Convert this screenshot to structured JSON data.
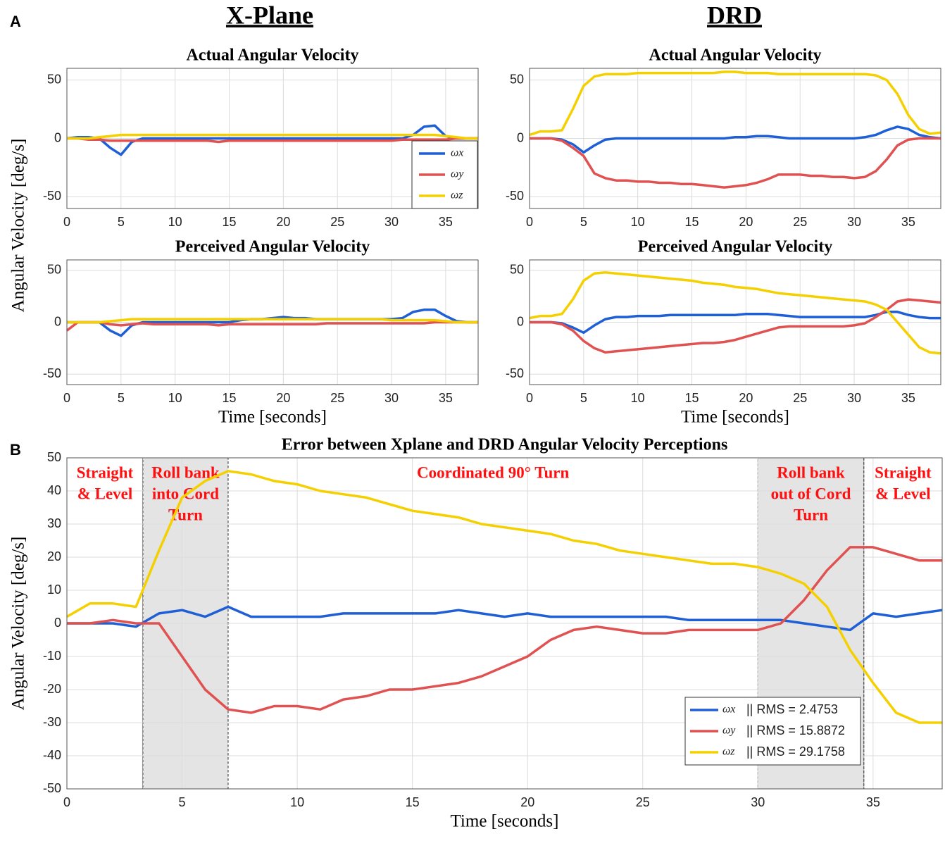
{
  "figure": {
    "panel_a_label": "A",
    "panel_b_label": "B",
    "column_titles": [
      "X-Plane",
      "DRD"
    ],
    "a_ylabel": "Angular Velocity [deg/s]"
  },
  "chart_data": [
    {
      "type": "line",
      "title": "Actual Angular Velocity",
      "legend": true,
      "x": [
        0,
        1,
        2,
        3,
        4,
        5,
        6,
        7,
        8,
        9,
        10,
        11,
        12,
        13,
        14,
        15,
        16,
        17,
        18,
        19,
        20,
        21,
        22,
        23,
        24,
        25,
        26,
        27,
        28,
        29,
        30,
        31,
        32,
        33,
        34,
        35,
        36,
        37,
        38
      ],
      "xlim": [
        0,
        38
      ],
      "ylim": [
        -60,
        60
      ],
      "xticks": [
        0,
        5,
        10,
        15,
        20,
        25,
        30,
        35
      ],
      "yticks": [
        -50,
        0,
        50
      ],
      "grid": true,
      "series": [
        {
          "name": "ωx",
          "color": "#1f5fd6",
          "values": [
            0,
            1,
            1,
            0,
            -8,
            -14,
            -3,
            0,
            0,
            0,
            0,
            0,
            0,
            0,
            0,
            0,
            0,
            0,
            0,
            0,
            0,
            0,
            0,
            0,
            0,
            0,
            0,
            0,
            0,
            0,
            0,
            0,
            3,
            10,
            11,
            2,
            0,
            0,
            0
          ]
        },
        {
          "name": "ωy",
          "color": "#e05252",
          "values": [
            0,
            0,
            -1,
            -1,
            -2,
            -2,
            -2,
            -2,
            -2,
            -2,
            -2,
            -2,
            -2,
            -2,
            -3,
            -2,
            -2,
            -2,
            -2,
            -2,
            -2,
            -2,
            -2,
            -2,
            -2,
            -2,
            -2,
            -2,
            -2,
            -2,
            -2,
            -1,
            -1,
            -1,
            -1,
            -1,
            0,
            0,
            0
          ]
        },
        {
          "name": "ωz",
          "color": "#f5d000",
          "values": [
            0,
            0,
            0,
            1,
            2,
            3,
            3,
            3,
            3,
            3,
            3,
            3,
            3,
            3,
            3,
            3,
            3,
            3,
            3,
            3,
            3,
            3,
            3,
            3,
            3,
            3,
            3,
            3,
            3,
            3,
            3,
            3,
            3,
            3,
            3,
            2,
            1,
            0,
            0
          ]
        }
      ]
    },
    {
      "type": "line",
      "title": "Actual Angular Velocity",
      "x": [
        0,
        1,
        2,
        3,
        4,
        5,
        6,
        7,
        8,
        9,
        10,
        11,
        12,
        13,
        14,
        15,
        16,
        17,
        18,
        19,
        20,
        21,
        22,
        23,
        24,
        25,
        26,
        27,
        28,
        29,
        30,
        31,
        32,
        33,
        34,
        35,
        36,
        37,
        38
      ],
      "xlim": [
        0,
        38
      ],
      "ylim": [
        -60,
        60
      ],
      "xticks": [
        0,
        5,
        10,
        15,
        20,
        25,
        30,
        35
      ],
      "yticks": [
        -50,
        0,
        50
      ],
      "grid": true,
      "series": [
        {
          "name": "ωx",
          "color": "#1f5fd6",
          "values": [
            0,
            0,
            0,
            -1,
            -5,
            -12,
            -6,
            -1,
            0,
            0,
            0,
            0,
            0,
            0,
            0,
            0,
            0,
            0,
            0,
            1,
            1,
            2,
            2,
            1,
            0,
            0,
            0,
            0,
            0,
            0,
            0,
            1,
            3,
            7,
            10,
            8,
            3,
            1,
            0
          ]
        },
        {
          "name": "ωy",
          "color": "#e05252",
          "values": [
            0,
            0,
            0,
            -2,
            -8,
            -15,
            -30,
            -34,
            -36,
            -36,
            -37,
            -37,
            -38,
            -38,
            -39,
            -39,
            -40,
            -41,
            -42,
            -41,
            -40,
            -38,
            -35,
            -31,
            -31,
            -31,
            -32,
            -32,
            -33,
            -33,
            -34,
            -33,
            -28,
            -18,
            -6,
            -1,
            0,
            0,
            0
          ]
        },
        {
          "name": "ωz",
          "color": "#f5d000",
          "values": [
            3,
            6,
            6,
            7,
            25,
            45,
            53,
            55,
            55,
            55,
            56,
            56,
            56,
            56,
            56,
            56,
            56,
            56,
            57,
            57,
            56,
            56,
            56,
            55,
            55,
            55,
            55,
            55,
            55,
            55,
            55,
            55,
            54,
            50,
            38,
            20,
            8,
            4,
            5
          ]
        }
      ]
    },
    {
      "type": "line",
      "title": "Perceived Angular Velocity",
      "xlabel": "Time [seconds]",
      "x": [
        0,
        1,
        2,
        3,
        4,
        5,
        6,
        7,
        8,
        9,
        10,
        11,
        12,
        13,
        14,
        15,
        16,
        17,
        18,
        19,
        20,
        21,
        22,
        23,
        24,
        25,
        26,
        27,
        28,
        29,
        30,
        31,
        32,
        33,
        34,
        35,
        36,
        37,
        38
      ],
      "xlim": [
        0,
        38
      ],
      "ylim": [
        -60,
        60
      ],
      "xticks": [
        0,
        5,
        10,
        15,
        20,
        25,
        30,
        35
      ],
      "yticks": [
        -50,
        0,
        50
      ],
      "grid": true,
      "series": [
        {
          "name": "ωx",
          "color": "#1f5fd6",
          "values": [
            0,
            0,
            0,
            0,
            -8,
            -13,
            -3,
            0,
            0,
            0,
            0,
            0,
            0,
            0,
            0,
            0,
            2,
            3,
            3,
            4,
            5,
            4,
            4,
            3,
            3,
            3,
            3,
            3,
            3,
            3,
            3,
            4,
            10,
            12,
            12,
            6,
            1,
            0,
            0
          ]
        },
        {
          "name": "ωy",
          "color": "#e05252",
          "values": [
            -8,
            0,
            0,
            0,
            -2,
            -3,
            -2,
            -1,
            -2,
            -2,
            -2,
            -2,
            -2,
            -2,
            -3,
            -2,
            -2,
            -2,
            -2,
            -2,
            -2,
            -2,
            -2,
            -2,
            -1,
            -1,
            -1,
            -1,
            -1,
            -1,
            -1,
            -1,
            -1,
            -1,
            0,
            0,
            0,
            0,
            0
          ]
        },
        {
          "name": "ωz",
          "color": "#f5d000",
          "values": [
            0,
            0,
            0,
            0,
            1,
            2,
            3,
            3,
            3,
            3,
            3,
            3,
            3,
            3,
            3,
            3,
            3,
            3,
            3,
            3,
            3,
            3,
            3,
            3,
            3,
            3,
            3,
            3,
            3,
            3,
            2,
            2,
            2,
            2,
            2,
            1,
            0,
            0,
            0
          ]
        }
      ]
    },
    {
      "type": "line",
      "title": "Perceived Angular Velocity",
      "xlabel": "Time [seconds]",
      "x": [
        0,
        1,
        2,
        3,
        4,
        5,
        6,
        7,
        8,
        9,
        10,
        11,
        12,
        13,
        14,
        15,
        16,
        17,
        18,
        19,
        20,
        21,
        22,
        23,
        24,
        25,
        26,
        27,
        28,
        29,
        30,
        31,
        32,
        33,
        34,
        35,
        36,
        37,
        38
      ],
      "xlim": [
        0,
        38
      ],
      "ylim": [
        -60,
        60
      ],
      "xticks": [
        0,
        5,
        10,
        15,
        20,
        25,
        30,
        35
      ],
      "yticks": [
        -50,
        0,
        50
      ],
      "grid": true,
      "series": [
        {
          "name": "ωx",
          "color": "#1f5fd6",
          "values": [
            0,
            0,
            0,
            -1,
            -5,
            -10,
            -3,
            3,
            5,
            5,
            6,
            6,
            6,
            7,
            7,
            7,
            7,
            7,
            7,
            7,
            8,
            8,
            8,
            7,
            6,
            5,
            5,
            5,
            5,
            5,
            5,
            5,
            7,
            10,
            10,
            7,
            5,
            4,
            4
          ]
        },
        {
          "name": "ωy",
          "color": "#e05252",
          "values": [
            0,
            0,
            0,
            -2,
            -8,
            -18,
            -25,
            -29,
            -28,
            -27,
            -26,
            -25,
            -24,
            -23,
            -22,
            -21,
            -20,
            -20,
            -19,
            -17,
            -14,
            -11,
            -8,
            -5,
            -4,
            -4,
            -4,
            -4,
            -4,
            -4,
            -3,
            -1,
            5,
            12,
            20,
            22,
            21,
            20,
            19
          ]
        },
        {
          "name": "ωz",
          "color": "#f5d000",
          "values": [
            4,
            6,
            6,
            8,
            22,
            40,
            47,
            48,
            47,
            46,
            45,
            44,
            43,
            42,
            41,
            40,
            38,
            37,
            36,
            34,
            33,
            32,
            30,
            28,
            27,
            26,
            25,
            24,
            23,
            22,
            21,
            20,
            17,
            12,
            0,
            -12,
            -24,
            -29,
            -30
          ]
        }
      ]
    },
    {
      "type": "line",
      "title": "Error between Xplane and DRD Angular Velocity Perceptions",
      "xlabel": "Time [seconds]",
      "ylabel": "Angular Velocity [deg/s]",
      "legend": true,
      "x": [
        0,
        1,
        2,
        3,
        4,
        5,
        6,
        7,
        8,
        9,
        10,
        11,
        12,
        13,
        14,
        15,
        16,
        17,
        18,
        19,
        20,
        21,
        22,
        23,
        24,
        25,
        26,
        27,
        28,
        29,
        30,
        31,
        32,
        33,
        34,
        35,
        36,
        37,
        38
      ],
      "xlim": [
        0,
        38
      ],
      "ylim": [
        -50,
        50
      ],
      "xticks": [
        0,
        5,
        10,
        15,
        20,
        25,
        30,
        35
      ],
      "yticks": [
        -50,
        -40,
        -30,
        -20,
        -10,
        0,
        10,
        20,
        30,
        40,
        50
      ],
      "grid": true,
      "phases": [
        {
          "xlim": [
            0,
            3.3
          ],
          "shaded": false,
          "label": [
            "Straight",
            "& Level"
          ]
        },
        {
          "xlim": [
            3.3,
            7
          ],
          "shaded": true,
          "label": [
            "Roll bank",
            "into Cord",
            "Turn"
          ]
        },
        {
          "xlim": [
            7,
            30
          ],
          "shaded": false,
          "label": [
            "Coordinated 90° Turn"
          ]
        },
        {
          "xlim": [
            30,
            34.6
          ],
          "shaded": true,
          "label": [
            "Roll bank",
            "out of Cord",
            "Turn"
          ]
        },
        {
          "xlim": [
            34.6,
            38
          ],
          "shaded": false,
          "label": [
            "Straight",
            "& Level"
          ]
        }
      ],
      "series": [
        {
          "name": "ωx",
          "color": "#1f5fd6",
          "legend_note": "||  RMS = 2.4753",
          "values": [
            0,
            0,
            0,
            -1,
            3,
            4,
            2,
            5,
            2,
            2,
            2,
            2,
            3,
            3,
            3,
            3,
            3,
            4,
            3,
            2,
            3,
            2,
            2,
            2,
            2,
            2,
            2,
            1,
            1,
            1,
            1,
            1,
            0,
            -1,
            -2,
            3,
            2,
            3,
            4
          ]
        },
        {
          "name": "ωy",
          "color": "#e05252",
          "legend_note": "||  RMS = 15.8872",
          "values": [
            0,
            0,
            1,
            0,
            0,
            -10,
            -20,
            -26,
            -27,
            -25,
            -25,
            -26,
            -23,
            -22,
            -20,
            -20,
            -19,
            -18,
            -16,
            -13,
            -10,
            -5,
            -2,
            -1,
            -2,
            -3,
            -3,
            -2,
            -2,
            -2,
            -2,
            0,
            7,
            16,
            23,
            23,
            21,
            19,
            19
          ]
        },
        {
          "name": "ωz",
          "color": "#f5d000",
          "legend_note": "||  RMS = 29.1758",
          "values": [
            2,
            6,
            6,
            5,
            22,
            38,
            43,
            46,
            45,
            43,
            42,
            40,
            39,
            38,
            36,
            34,
            33,
            32,
            30,
            29,
            28,
            27,
            25,
            24,
            22,
            21,
            20,
            19,
            18,
            18,
            17,
            15,
            12,
            5,
            -8,
            -18,
            -27,
            -30,
            -30
          ]
        }
      ]
    }
  ]
}
